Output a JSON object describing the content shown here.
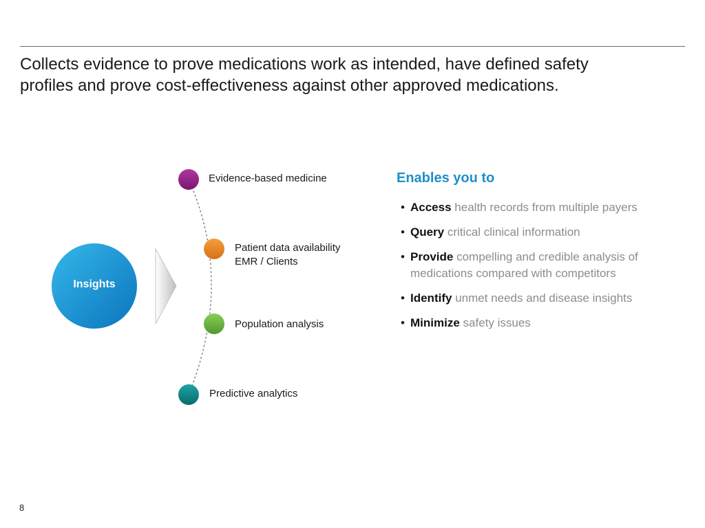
{
  "headline": {
    "line1": "Collects evidence to prove medications work as intended, have defined safety",
    "line2": "profiles and prove cost-effectiveness against other approved medications."
  },
  "center": {
    "label": "Insights",
    "color": "#1a93d4"
  },
  "nodes": [
    {
      "lines": [
        "Evidence-based medicine"
      ],
      "color": "#8e1f82"
    },
    {
      "lines": [
        "Patient data availability",
        "EMR / Clients"
      ],
      "color": "#e8871e"
    },
    {
      "lines": [
        "Population analysis"
      ],
      "color": "#6ab23e"
    },
    {
      "lines": [
        "Predictive analytics"
      ],
      "color": "#0e7f80"
    }
  ],
  "enables": {
    "title": "Enables you to",
    "title_color": "#1d8fc9",
    "items": [
      {
        "verb": "Access",
        "rest": "health records from multiple payers"
      },
      {
        "verb": "Query",
        "rest": "critical clinical information"
      },
      {
        "verb": "Provide",
        "rest": "compelling and credible analysis of medications compared with competitors"
      },
      {
        "verb": "Identify",
        "rest": "unmet needs and disease insights"
      },
      {
        "verb": "Minimize",
        "rest": "safety issues"
      }
    ]
  },
  "page_number": "8"
}
